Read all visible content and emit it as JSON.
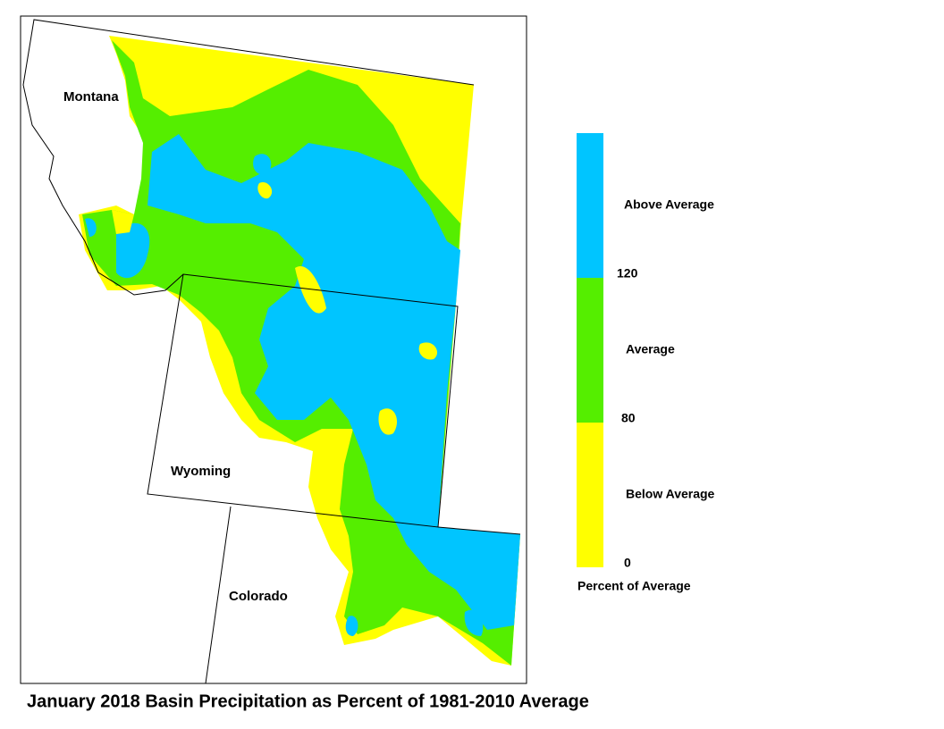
{
  "map": {
    "title": "January 2018 Basin Precipitation as Percent of 1981-2010 Average",
    "state_labels": [
      "Montana",
      "Wyoming",
      "Colorado"
    ],
    "legend": {
      "title": "Percent of Average",
      "classes": [
        {
          "label": "Below Average",
          "color": "#ffff00"
        },
        {
          "label": "Average",
          "color": "#55ee00"
        },
        {
          "label": "Above Average",
          "color": "#00c5ff"
        }
      ],
      "ticks": [
        0,
        80,
        120
      ]
    }
  }
}
